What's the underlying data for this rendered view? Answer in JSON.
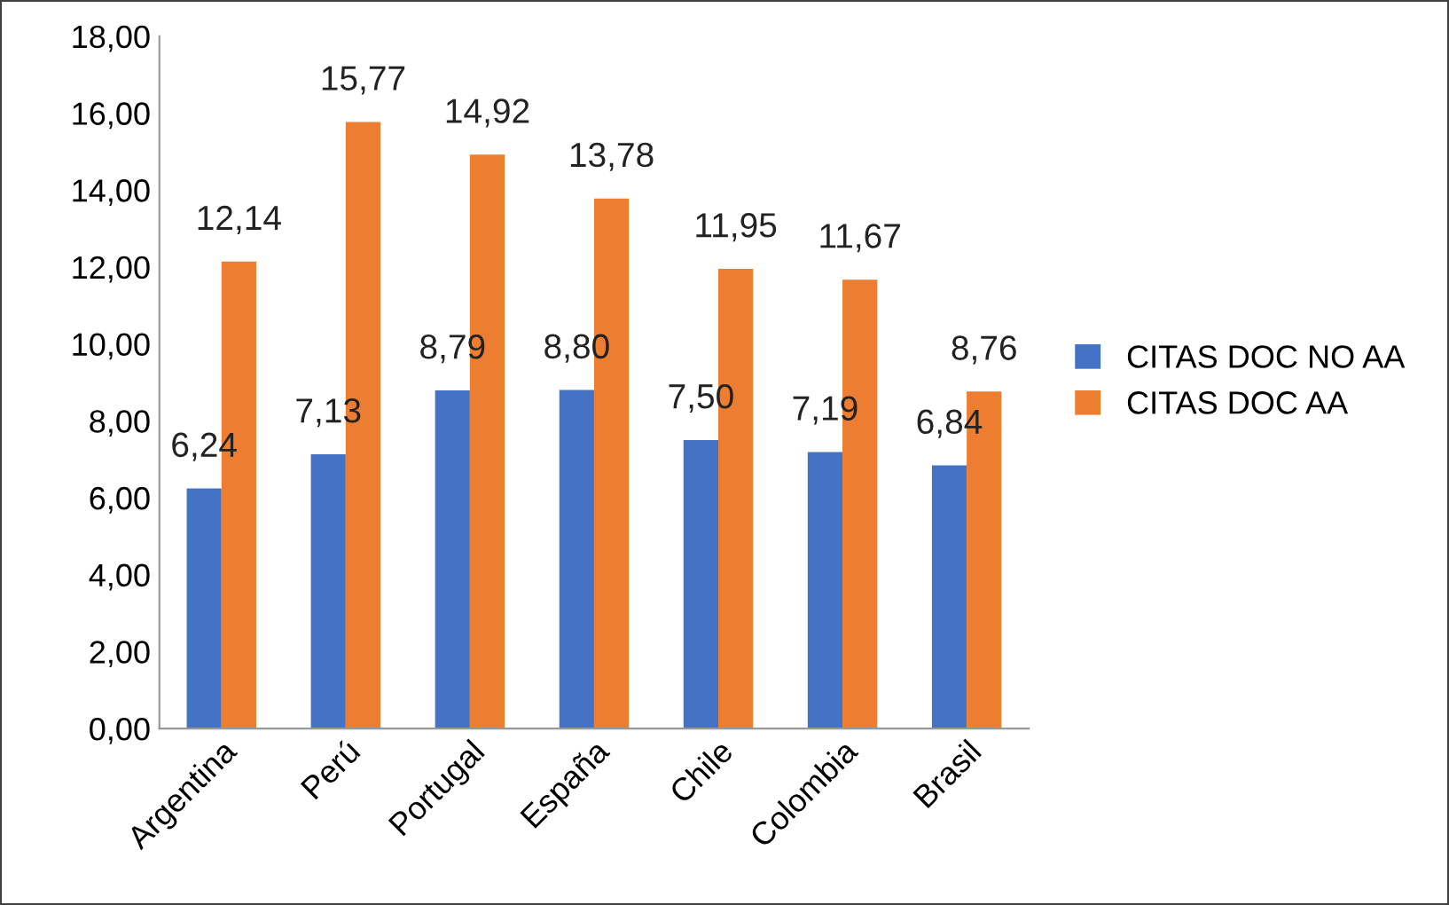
{
  "chart_data": {
    "type": "bar",
    "categories": [
      "Argentina",
      "Perú",
      "Portugal",
      "España",
      "Chile",
      "Colombia",
      "Brasil"
    ],
    "series": [
      {
        "name": "CITAS DOC NO AA",
        "color": "#4472c4",
        "values": [
          6.24,
          7.13,
          8.79,
          8.8,
          7.5,
          7.19,
          6.84
        ],
        "value_labels": [
          "6,24",
          "7,13",
          "8,79",
          "8,80",
          "7,50",
          "7,19",
          "6,84"
        ]
      },
      {
        "name": "CITAS DOC AA",
        "color": "#ed7d31",
        "values": [
          12.14,
          15.77,
          14.92,
          13.78,
          11.95,
          11.67,
          8.76
        ],
        "value_labels": [
          "12,14",
          "15,77",
          "14,92",
          "13,78",
          "11,95",
          "11,67",
          "8,76"
        ]
      }
    ],
    "ylim": [
      0,
      18
    ],
    "yticks": [
      {
        "value": 0,
        "label": "0,00"
      },
      {
        "value": 2,
        "label": "2,00"
      },
      {
        "value": 4,
        "label": "4,00"
      },
      {
        "value": 6,
        "label": "6,00"
      },
      {
        "value": 8,
        "label": "8,00"
      },
      {
        "value": 10,
        "label": "10,00"
      },
      {
        "value": 12,
        "label": "12,00"
      },
      {
        "value": 14,
        "label": "14,00"
      },
      {
        "value": 16,
        "label": "16,00"
      },
      {
        "value": 18,
        "label": "18,00"
      }
    ],
    "grid": false,
    "legend": "right"
  }
}
